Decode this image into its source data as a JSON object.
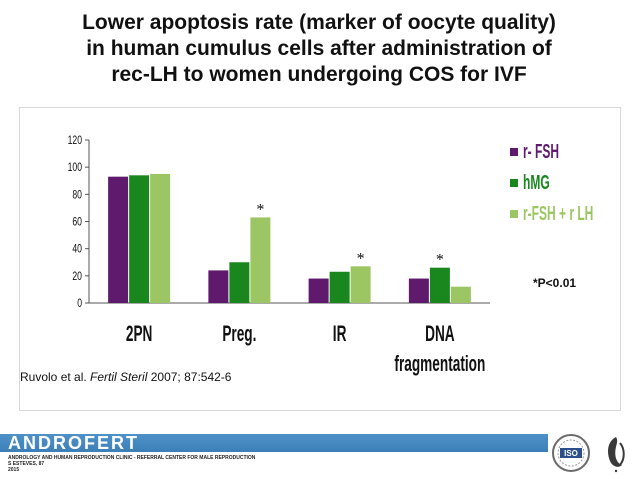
{
  "title_lines": [
    "Lower apoptosis rate (marker of oocyte quality)",
    "in human cumulus cells after administration of",
    "rec-LH to women undergoing COS for IVF"
  ],
  "chart_data": {
    "type": "bar",
    "categories": [
      "2PN",
      "Preg.",
      "IR",
      "DNA fragmentation"
    ],
    "category_lines": [
      [
        "2PN"
      ],
      [
        "Preg."
      ],
      [
        "IR"
      ],
      [
        "DNA",
        "fragmentation"
      ]
    ],
    "series": [
      {
        "name": "r- FSH",
        "color": "#5f1a6e",
        "values": [
          93,
          24,
          18,
          18
        ]
      },
      {
        "name": "hMG",
        "color": "#19861e",
        "values": [
          94,
          30,
          23,
          26
        ]
      },
      {
        "name": "r-FSH + r LH",
        "color": "#9cc664",
        "values": [
          95,
          63,
          27,
          12
        ]
      }
    ],
    "significance_markers": [
      {
        "category": "Preg.",
        "series": "r-FSH + r LH",
        "label": "*"
      },
      {
        "category": "IR",
        "series": "r-FSH + r LH",
        "label": "*"
      },
      {
        "category": "DNA fragmentation",
        "series": "hMG",
        "label": "*"
      }
    ],
    "yticks": [
      0,
      20,
      40,
      60,
      80,
      100,
      120
    ],
    "ylim": [
      0,
      120
    ],
    "legend_position": "right",
    "xlabel": "",
    "ylabel": "",
    "significance_note": "*P<0.01"
  },
  "citation": {
    "authors": "Ruvolo et al.",
    "journal": "Fertil Steril",
    "details": "2007; 87:542-6"
  },
  "footer": {
    "brand": "ANDROFERT",
    "subtitle_lines": [
      "ANDROLOGY AND HUMAN REPRODUCTION CLINIC - REFERRAL CENTER FOR MALE REPRODUCTION",
      "S ESTEVES, 87",
      "2015"
    ],
    "iso_label": "ISO"
  }
}
